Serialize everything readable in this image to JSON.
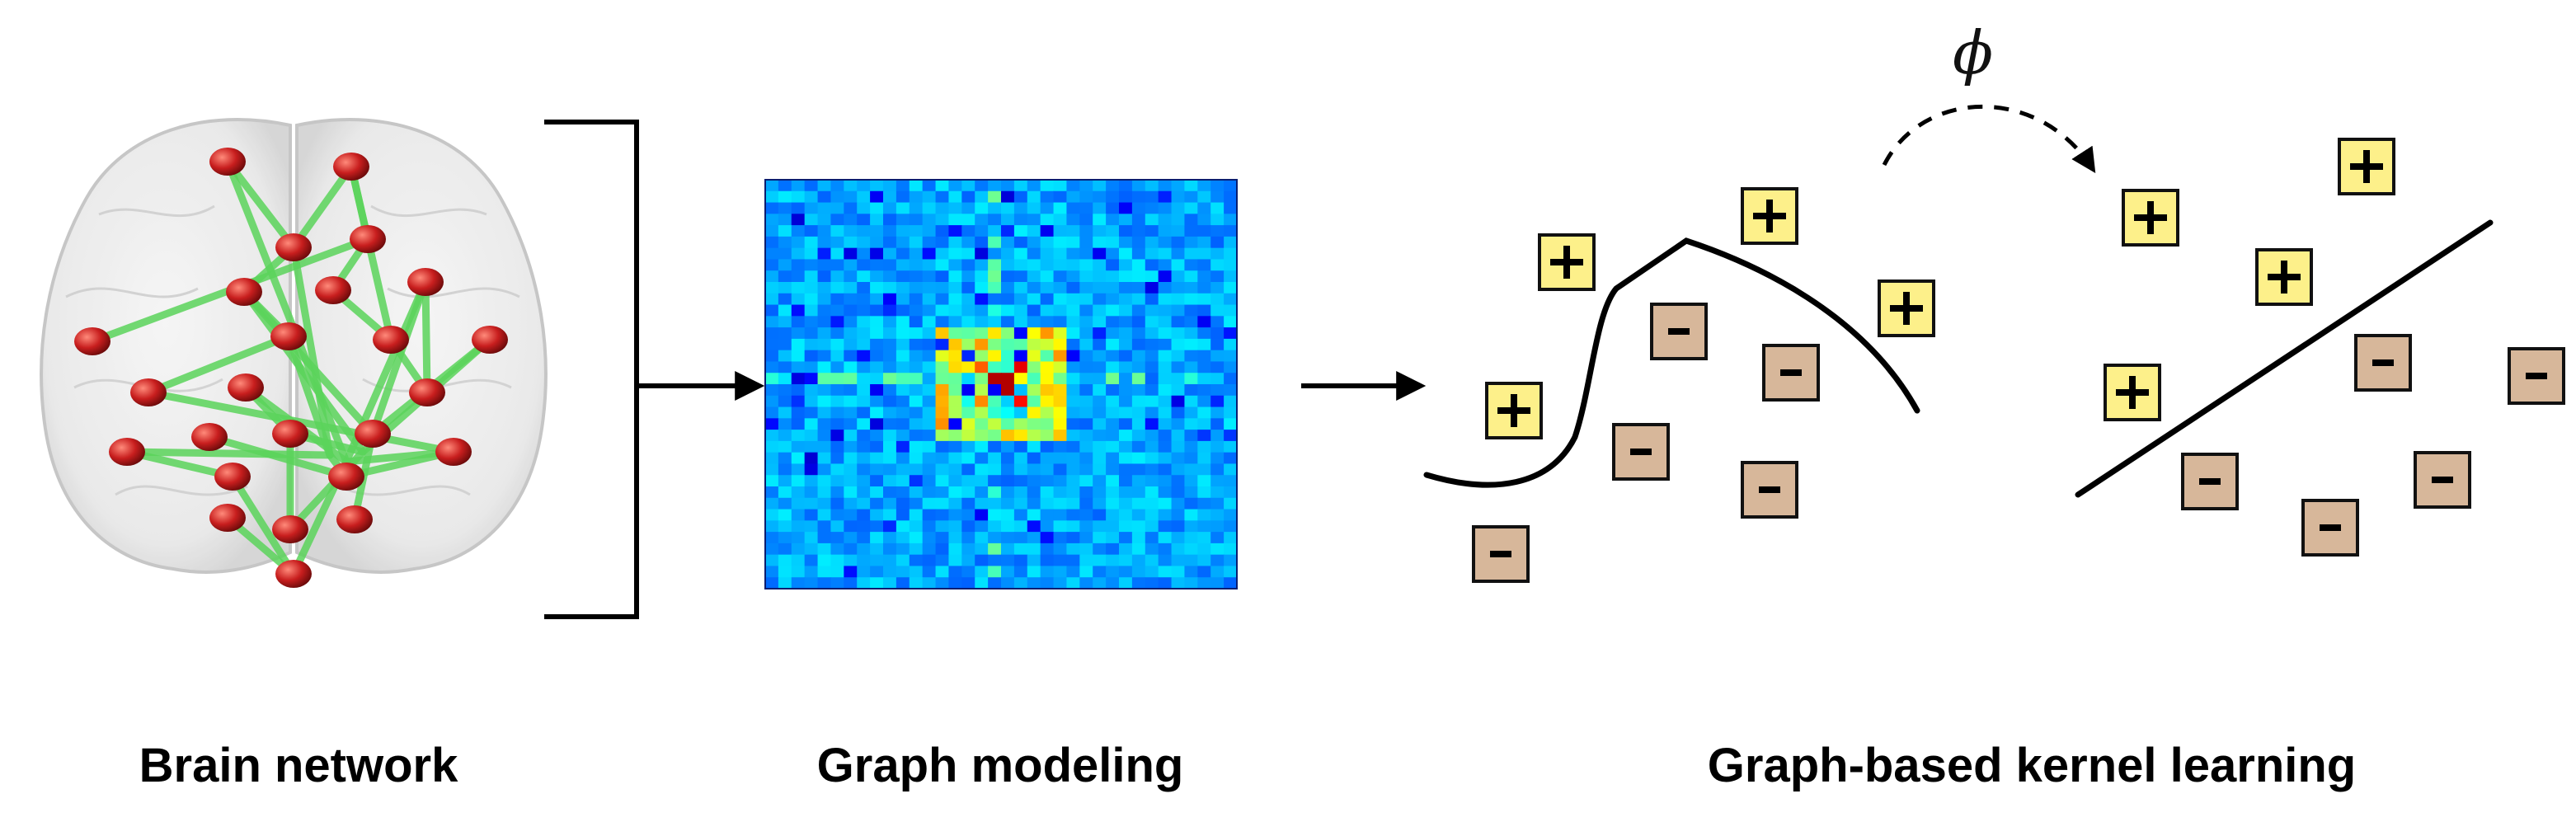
{
  "captions": {
    "brain_network": "Brain network",
    "graph_modeling": "Graph modeling",
    "kernel_learning": "Graph-based kernel learning"
  },
  "mapping_symbol": "ϕ",
  "class_symbols": {
    "positive": "+",
    "negative": "−"
  },
  "colors": {
    "positive_box": "#fdf08a",
    "negative_box": "#d7b79a",
    "brain_edge": "#5bd45b",
    "brain_node": "#c81e1e",
    "matrix_base": "#1e4fe6"
  },
  "icons": {
    "brain": "brain-network-icon",
    "matrix": "connectivity-matrix-icon",
    "arrow": "right-arrow-icon"
  }
}
